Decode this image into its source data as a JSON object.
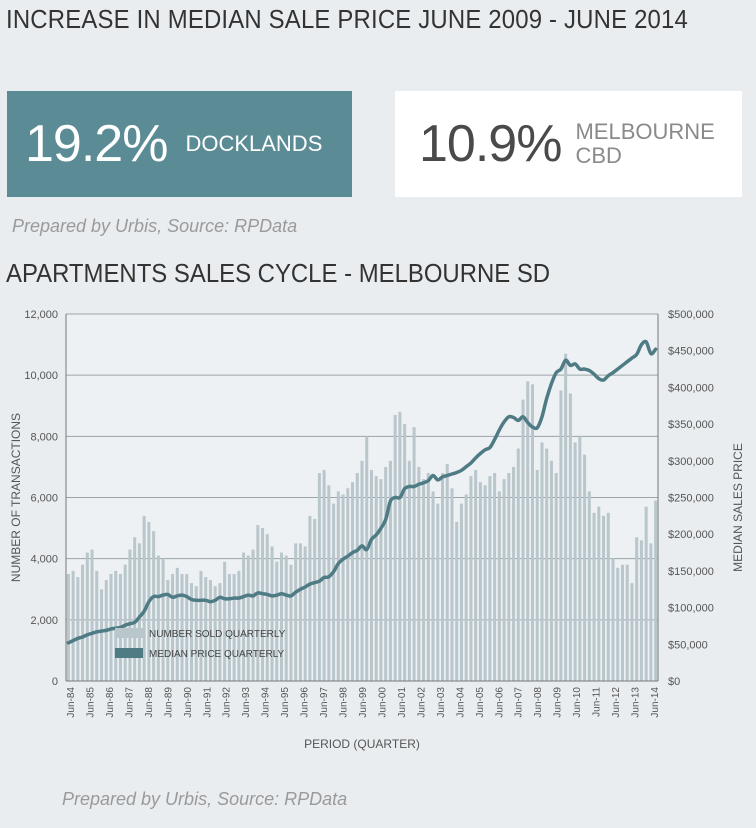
{
  "header": {
    "title": "INCREASE IN MEDIAN SALE PRICE JUNE 2009 - JUNE 2014"
  },
  "stats": [
    {
      "value": "19.2%",
      "label": "DOCKLANDS"
    },
    {
      "value": "10.9%",
      "label": "MELBOURNE CBD"
    }
  ],
  "source_top": "Prepared by Urbis, Source: RPData",
  "chart_section": {
    "title": "APARTMENTS SALES CYCLE - MELBOURNE SD"
  },
  "source_bottom": "Prepared by Urbis, Source: RPData",
  "colors": {
    "teal": "#5b8c95",
    "bars": "#b9c7cd",
    "line": "#4e7b84"
  },
  "chart_data": {
    "type": "bar+line",
    "xlabel": "PERIOD (QUARTER)",
    "ylabel_left": "NUMBER OF TRANSACTIONS",
    "ylabel_right": "MEDIAN SALES PRICE",
    "ylim_left": [
      0,
      12000
    ],
    "ylim_right": [
      0,
      500000
    ],
    "yticks_left": [
      "0",
      "2,000",
      "4,000",
      "6,000",
      "8,000",
      "10,000",
      "12,000"
    ],
    "yticks_right": [
      "$0",
      "$50,000",
      "$100,000",
      "$150,000",
      "$200,000",
      "$250,000",
      "$300,000",
      "$350,000",
      "$400,000",
      "$450,000",
      "$500,000"
    ],
    "x_ticks": [
      "Jun-84",
      "Jun-85",
      "Jun-86",
      "Jun-87",
      "Jun-88",
      "Jun-89",
      "Jun-90",
      "Jun-91",
      "Jun-92",
      "Jun-93",
      "Jun-94",
      "Jun-95",
      "Jun-96",
      "Jun-97",
      "Jun-98",
      "Jun-99",
      "Jun-00",
      "Jun-01",
      "Jun-02",
      "Jun-03",
      "Jun-04",
      "Jun-05",
      "Jun-06",
      "Jun-07",
      "Jun-08",
      "Jun-09",
      "Jun-10",
      "Jun-11",
      "Jun-12",
      "Jun-13",
      "Jun-14"
    ],
    "grid": true,
    "legend_position": "top-left",
    "series": [
      {
        "name": "NUMBER SOLD QUARTERLY",
        "kind": "bar",
        "axis": "left",
        "values": [
          3500,
          3600,
          3400,
          3800,
          4200,
          4300,
          3600,
          3000,
          3300,
          3500,
          3600,
          3500,
          3800,
          4300,
          4700,
          4500,
          5400,
          5200,
          4900,
          4100,
          4000,
          3300,
          3500,
          3700,
          3500,
          3500,
          3200,
          3100,
          3600,
          3400,
          3300,
          3100,
          3200,
          3900,
          3500,
          3500,
          3600,
          4200,
          4100,
          4300,
          5100,
          5000,
          4800,
          4400,
          3900,
          4200,
          4100,
          3800,
          4500,
          4500,
          4400,
          5400,
          5300,
          6800,
          6900,
          6400,
          5800,
          6200,
          6100,
          6300,
          6500,
          6800,
          7200,
          8000,
          6900,
          6700,
          6600,
          7000,
          7200,
          8700,
          8800,
          8400,
          7200,
          8300,
          7000,
          6600,
          6800,
          6200,
          5800,
          6800,
          7100,
          6300,
          5200,
          5800,
          6100,
          6700,
          6900,
          6500,
          6400,
          6700,
          6800,
          6200,
          6600,
          6800,
          7000,
          7600,
          9200,
          9800,
          9700,
          6900,
          7800,
          7600,
          7200,
          6800,
          9500,
          10700,
          9400,
          7800,
          8000,
          7400,
          6200,
          5500,
          5700,
          5400,
          5500,
          4000,
          3700,
          3800,
          3800,
          3200,
          4700,
          4600,
          5700,
          4500,
          5900
        ]
      },
      {
        "name": "MEDIAN PRICE QUARTERLY",
        "kind": "line",
        "axis": "right",
        "values": [
          52000,
          55000,
          58000,
          60000,
          63000,
          65000,
          67000,
          68000,
          69000,
          71000,
          72000,
          73000,
          76000,
          78000,
          80000,
          87000,
          95000,
          108000,
          115000,
          115000,
          117000,
          118000,
          114000,
          116000,
          117000,
          115000,
          111000,
          110000,
          110000,
          110000,
          108000,
          110000,
          114000,
          112000,
          112000,
          113000,
          113000,
          115000,
          117000,
          116000,
          120000,
          119000,
          118000,
          116000,
          117000,
          119000,
          117000,
          116000,
          121000,
          125000,
          128000,
          132000,
          134000,
          136000,
          141000,
          142000,
          149000,
          160000,
          166000,
          170000,
          175000,
          178000,
          184000,
          179000,
          193000,
          199000,
          208000,
          220000,
          245000,
          250000,
          250000,
          262000,
          265000,
          265000,
          268000,
          270000,
          273000,
          280000,
          274000,
          278000,
          280000,
          282000,
          284000,
          287000,
          292000,
          297000,
          304000,
          310000,
          315000,
          318000,
          329000,
          342000,
          353000,
          360000,
          359000,
          355000,
          360000,
          352000,
          346000,
          345000,
          360000,
          385000,
          405000,
          420000,
          425000,
          437000,
          430000,
          432000,
          425000,
          425000,
          423000,
          418000,
          412000,
          410000,
          416000,
          420000,
          425000,
          430000,
          435000,
          440000,
          445000,
          458000,
          462000,
          446000,
          452000
        ]
      }
    ]
  }
}
